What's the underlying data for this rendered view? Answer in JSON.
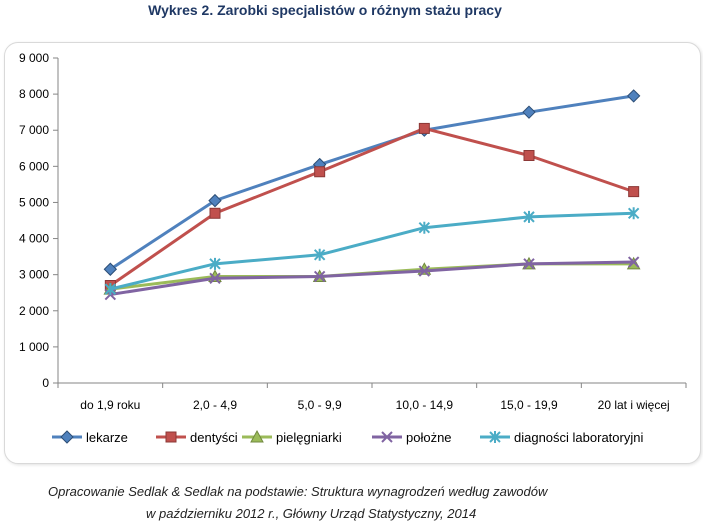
{
  "chart_data": {
    "type": "line",
    "title": "Wykres 2. Zarobki specjalistów o różnym stażu pracy",
    "categories": [
      "do 1,9 roku",
      "2,0 - 4,9",
      "5,0 - 9,9",
      "10,0 - 14,9",
      "15,0 - 19,9",
      "20 lat i więcej"
    ],
    "ylim": [
      0,
      9000
    ],
    "yticks": [
      "0",
      "1 000",
      "2 000",
      "3 000",
      "4 000",
      "5 000",
      "6 000",
      "7 000",
      "8 000",
      "9 000"
    ],
    "ytick_values": [
      0,
      1000,
      2000,
      3000,
      4000,
      5000,
      6000,
      7000,
      8000,
      9000
    ],
    "legend_position": "bottom",
    "series": [
      {
        "name": "lekarze",
        "color": "#4f81bd",
        "marker": "diamond",
        "values": [
          3150,
          5050,
          6050,
          7000,
          7500,
          7950
        ]
      },
      {
        "name": "dentyści",
        "color": "#c0504d",
        "marker": "square",
        "values": [
          2700,
          4700,
          5850,
          7050,
          6300,
          5300
        ]
      },
      {
        "name": "pielęgniarki",
        "color": "#9bbb59",
        "marker": "triangle",
        "values": [
          2600,
          2950,
          2950,
          3150,
          3300,
          3300
        ]
      },
      {
        "name": "położne",
        "color": "#8064a2",
        "marker": "x",
        "values": [
          2450,
          2900,
          2950,
          3100,
          3300,
          3350
        ]
      },
      {
        "name": "diagności laboratoryjni",
        "color": "#4bacc6",
        "marker": "star",
        "values": [
          2600,
          3300,
          3550,
          4300,
          4600,
          4700
        ]
      }
    ]
  },
  "source": {
    "line1": "Opracowanie Sedlak & Sedlak na podstawie: Struktura wynagrodzeń według zawodów",
    "line2": "w październiku 2012 r., Główny Urząd Statystyczny,  2014"
  }
}
